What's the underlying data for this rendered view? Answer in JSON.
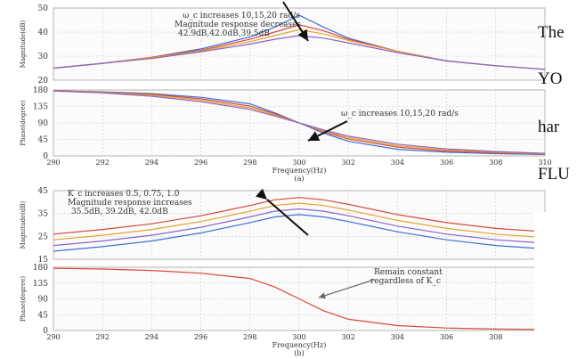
{
  "overlay_text": [
    "The",
    "YO",
    "har",
    "FLU"
  ],
  "colors": {
    "blue": "#3b6fd6",
    "red": "#d9473c",
    "orange": "#e3a32b",
    "purple": "#8a63c7",
    "grid": "#c9c9c9",
    "text": "#333333"
  },
  "chart_data": [
    {
      "panel": "a",
      "type": "line",
      "ylabel": "Magnitude(dB)",
      "xlim": [
        290,
        310
      ],
      "ylim": [
        20,
        50
      ],
      "yticks": [
        50,
        40,
        30,
        20
      ],
      "annotation": [
        "ω_c increases 10,15,20 rad/s",
        "Magnitude response decreases",
        "42.9dB,42.0dB,39.5dB"
      ],
      "series": [
        {
          "color": "#3b6fd6",
          "x": [
            290,
            292,
            294,
            296,
            298,
            299,
            300,
            301,
            302,
            304,
            306,
            308,
            310
          ],
          "y": [
            25,
            27,
            29.5,
            33,
            38,
            42,
            47,
            42,
            37.5,
            32,
            28,
            26,
            24.5
          ]
        },
        {
          "color": "#d9473c",
          "x": [
            290,
            292,
            294,
            296,
            298,
            299,
            300,
            301,
            302,
            304,
            306,
            308,
            310
          ],
          "y": [
            25,
            27,
            29.5,
            32.5,
            37,
            40,
            43,
            40.5,
            37,
            32,
            28,
            26,
            24.5
          ]
        },
        {
          "color": "#e3a32b",
          "x": [
            290,
            292,
            294,
            296,
            298,
            299,
            300,
            301,
            302,
            304,
            306,
            308,
            310
          ],
          "y": [
            25,
            27,
            29.3,
            32.2,
            36,
            38.5,
            41,
            39.2,
            36.5,
            32,
            28,
            26,
            24.5
          ]
        },
        {
          "color": "#8a63c7",
          "x": [
            290,
            292,
            294,
            296,
            298,
            299,
            300,
            301,
            302,
            304,
            306,
            308,
            310
          ],
          "y": [
            25,
            27,
            29,
            31.8,
            35,
            37,
            38.5,
            37.5,
            35.5,
            31.5,
            28,
            26,
            24.5
          ]
        }
      ]
    },
    {
      "panel": "a",
      "type": "line",
      "ylabel": "Phase(degree)",
      "xlabel": "Frequency(Hz)",
      "caption": "(a)",
      "xlim": [
        290,
        310
      ],
      "ylim": [
        0,
        180
      ],
      "yticks": [
        180,
        135,
        90,
        45,
        0
      ],
      "xticks": [
        "290",
        "292",
        "294",
        "296",
        "298",
        "300",
        "302",
        "304",
        "306",
        "308",
        "310"
      ],
      "annotation": [
        "ω_c increases 10,15,20 rad/s"
      ],
      "series": [
        {
          "color": "#3b6fd6",
          "x": [
            290,
            292,
            294,
            296,
            298,
            299,
            300,
            301,
            302,
            304,
            306,
            308,
            310
          ],
          "y": [
            178,
            175,
            170,
            160,
            142,
            118,
            90,
            62,
            40,
            18,
            10,
            6,
            4
          ]
        },
        {
          "color": "#d9473c",
          "x": [
            290,
            292,
            294,
            296,
            298,
            299,
            300,
            301,
            302,
            304,
            306,
            308,
            310
          ],
          "y": [
            178,
            174,
            168,
            156,
            136,
            115,
            90,
            66,
            46,
            24,
            13,
            8,
            5
          ]
        },
        {
          "color": "#e3a32b",
          "x": [
            290,
            292,
            294,
            296,
            298,
            299,
            300,
            301,
            302,
            304,
            306,
            308,
            310
          ],
          "y": [
            177,
            173,
            166,
            152,
            131,
            112,
            90,
            68,
            50,
            28,
            16,
            10,
            6
          ]
        },
        {
          "color": "#8a63c7",
          "x": [
            290,
            292,
            294,
            296,
            298,
            299,
            300,
            301,
            302,
            304,
            306,
            308,
            310
          ],
          "y": [
            177,
            172,
            163,
            148,
            127,
            109,
            90,
            71,
            54,
            32,
            19,
            12,
            7
          ]
        }
      ]
    },
    {
      "panel": "b",
      "type": "line",
      "ylabel": "Magnitude(dB)",
      "xlim": [
        290,
        310
      ],
      "ylim": [
        15,
        45
      ],
      "yticks": [
        45,
        35,
        25,
        15
      ],
      "annotation": [
        "K_c increases 0.5, 0.75, 1.0",
        "Magnitude response increases",
        "35.5dB, 39.2dB, 42.0dB"
      ],
      "series": [
        {
          "color": "#d9473c",
          "x": [
            290,
            292,
            294,
            296,
            298,
            299,
            300,
            301,
            302,
            304,
            306,
            308,
            310
          ],
          "y": [
            26,
            28,
            30.5,
            34,
            38.5,
            41,
            42,
            41,
            39,
            34.5,
            31,
            28.5,
            27
          ]
        },
        {
          "color": "#e3a32b",
          "x": [
            290,
            292,
            294,
            296,
            298,
            299,
            300,
            301,
            302,
            304,
            306,
            308,
            310
          ],
          "y": [
            23.5,
            25.5,
            28,
            31.5,
            36,
            38.5,
            39.5,
            38.5,
            36.5,
            32,
            28.5,
            26,
            24.5
          ]
        },
        {
          "color": "#8a63c7",
          "x": [
            290,
            292,
            294,
            296,
            298,
            299,
            300,
            301,
            302,
            304,
            306,
            308,
            310
          ],
          "y": [
            21,
            23,
            25.5,
            29,
            33.5,
            36,
            37,
            36,
            34,
            29.5,
            26,
            23.5,
            22
          ]
        },
        {
          "color": "#3b6fd6",
          "x": [
            290,
            292,
            294,
            296,
            298,
            299,
            300,
            301,
            302,
            304,
            306,
            308,
            310
          ],
          "y": [
            18.5,
            20.5,
            23,
            26.5,
            31,
            33.5,
            34.5,
            33.5,
            31.5,
            27,
            23.5,
            21,
            19.5
          ]
        }
      ]
    },
    {
      "panel": "b",
      "type": "line",
      "ylabel": "Phase(degree)",
      "xlabel": "Frequency(Hz)",
      "caption": "(b)",
      "xlim": [
        290,
        310
      ],
      "ylim": [
        0,
        180
      ],
      "yticks": [
        180,
        135,
        90,
        45,
        0
      ],
      "xticks": [
        "290",
        "292",
        "294",
        "296",
        "298",
        "300",
        "302",
        "304",
        "306",
        "308"
      ],
      "annotation": [
        "Remain constant",
        "regardless of K_c"
      ],
      "series": [
        {
          "color": "#d9473c",
          "x": [
            290,
            292,
            294,
            296,
            298,
            299,
            300,
            301,
            302,
            304,
            306,
            308,
            310
          ],
          "y": [
            177,
            175,
            171,
            163,
            148,
            124,
            90,
            56,
            32,
            14,
            7,
            4,
            3
          ]
        }
      ]
    }
  ]
}
